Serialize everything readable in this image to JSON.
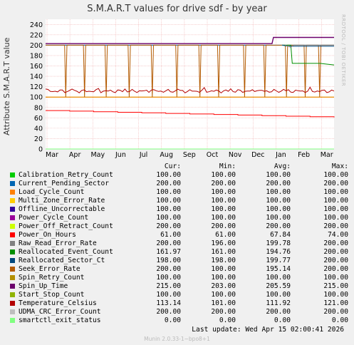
{
  "chart_data": {
    "type": "line",
    "title": "S.M.A.R.T values for drive sdf - by year",
    "ylabel": "Attribute S.M.A.R.T value",
    "ylim": [
      0,
      250
    ],
    "yticks": [
      0,
      20,
      40,
      60,
      80,
      100,
      120,
      140,
      160,
      180,
      200,
      220,
      240
    ],
    "months": [
      "Mar",
      "Apr",
      "May",
      "Jun",
      "Jul",
      "Aug",
      "Sep",
      "Oct",
      "Nov",
      "Dec",
      "Jan",
      "Feb",
      "Mar"
    ],
    "grid": true,
    "legend_placement": "bottom",
    "side_label": "RRDTOOL / TOBI OETIKER",
    "columns": [
      "Cur:",
      "Min:",
      "Avg:",
      "Max:"
    ],
    "series": [
      {
        "name": "Calibration_Retry_Count",
        "color": "#00cc00",
        "cur": "100.00",
        "min": "100.00",
        "avg": "100.00",
        "max": "100.00"
      },
      {
        "name": "Current_Pending_Sector",
        "color": "#0066b3",
        "cur": "200.00",
        "min": "200.00",
        "avg": "200.00",
        "max": "200.00"
      },
      {
        "name": "Load_Cycle_Count",
        "color": "#ff8000",
        "cur": "100.00",
        "min": "100.00",
        "avg": "100.00",
        "max": "100.00"
      },
      {
        "name": "Multi_Zone_Error_Rate",
        "color": "#ffcc00",
        "cur": "100.00",
        "min": "100.00",
        "avg": "100.00",
        "max": "100.00"
      },
      {
        "name": "Offline_Uncorrectable",
        "color": "#330099",
        "cur": "100.00",
        "min": "100.00",
        "avg": "100.00",
        "max": "100.00"
      },
      {
        "name": "Power_Cycle_Count",
        "color": "#990099",
        "cur": "100.00",
        "min": "100.00",
        "avg": "100.00",
        "max": "100.00"
      },
      {
        "name": "Power_Off_Retract_Count",
        "color": "#ccff00",
        "cur": "200.00",
        "min": "200.00",
        "avg": "200.00",
        "max": "200.00"
      },
      {
        "name": "Power_On_Hours",
        "color": "#ff0000",
        "cur": "61.00",
        "min": "61.00",
        "avg": "67.84",
        "max": "74.00"
      },
      {
        "name": "Raw_Read_Error_Rate",
        "color": "#808080",
        "cur": "200.00",
        "min": "196.00",
        "avg": "199.78",
        "max": "200.00"
      },
      {
        "name": "Reallocated_Event_Count",
        "color": "#008f00",
        "cur": "161.97",
        "min": "161.00",
        "avg": "194.76",
        "max": "200.00"
      },
      {
        "name": "Reallocated_Sector_Ct",
        "color": "#00487d",
        "cur": "198.00",
        "min": "198.00",
        "avg": "199.77",
        "max": "200.00"
      },
      {
        "name": "Seek_Error_Rate",
        "color": "#b35a00",
        "cur": "200.00",
        "min": "100.00",
        "avg": "195.14",
        "max": "200.00"
      },
      {
        "name": "Spin_Retry_Count",
        "color": "#b38f00",
        "cur": "100.00",
        "min": "100.00",
        "avg": "100.00",
        "max": "100.00"
      },
      {
        "name": "Spin_Up_Time",
        "color": "#6b006b",
        "cur": "215.00",
        "min": "203.00",
        "avg": "205.59",
        "max": "215.00"
      },
      {
        "name": "Start_Stop_Count",
        "color": "#8fb300",
        "cur": "100.00",
        "min": "100.00",
        "avg": "100.00",
        "max": "100.00"
      },
      {
        "name": "Temperature_Celsius",
        "color": "#b30000",
        "cur": "113.14",
        "min": "101.00",
        "avg": "111.92",
        "max": "121.00"
      },
      {
        "name": "UDMA_CRC_Error_Count",
        "color": "#bebebe",
        "cur": "200.00",
        "min": "200.00",
        "avg": "200.00",
        "max": "200.00"
      },
      {
        "name": "smartctl_exit_status",
        "color": "#80ff80",
        "cur": "0.00",
        "min": "0.00",
        "avg": "0.00",
        "max": "0.00"
      }
    ]
  },
  "last_update": "Last update:  Wed Apr 15 02:00:41 2026",
  "munin_version": "Munin 2.0.33-1~bpo8+1"
}
